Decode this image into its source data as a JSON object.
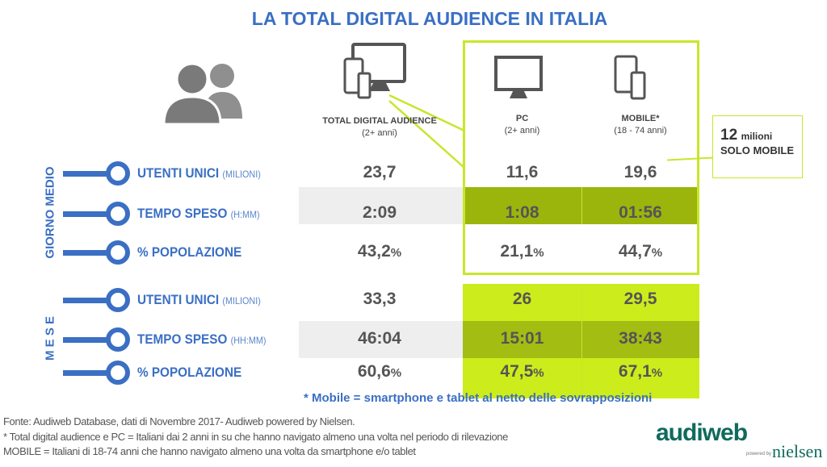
{
  "title": "LA TOTAL DIGITAL AUDIENCE IN ITALIA",
  "columns": [
    {
      "label": "TOTAL DIGITAL AUDIENCE",
      "sub": "(2+ anni)",
      "icon": "multi-device-icon"
    },
    {
      "label": "PC",
      "sub": "(2+ anni)",
      "icon": "monitor-icon"
    },
    {
      "label": "MOBILE*",
      "sub": "(18 - 74 anni)",
      "icon": "tablet-phone-icon"
    }
  ],
  "groups": [
    {
      "label": "GIORNO MEDIO",
      "rows": [
        {
          "label": "UTENTI UNICI",
          "unit": "(MILIONI)",
          "values": [
            "23,7",
            "11,6",
            "19,6"
          ],
          "suffix": ""
        },
        {
          "label": "TEMPO SPESO",
          "unit": "(H:MM)",
          "values": [
            "2:09",
            "1:08",
            "01:56"
          ],
          "suffix": ""
        },
        {
          "label": "% POPOLAZIONE",
          "unit": "",
          "values": [
            "43,2",
            "21,1",
            "44,7"
          ],
          "suffix": "%"
        }
      ]
    },
    {
      "label": "M E S E",
      "rows": [
        {
          "label": "UTENTI UNICI",
          "unit": "(MILIONI)",
          "values": [
            "33,3",
            "26",
            "29,5"
          ],
          "suffix": ""
        },
        {
          "label": "TEMPO SPESO",
          "unit": "(HH:MM)",
          "values": [
            "46:04",
            "15:01",
            "38:43"
          ],
          "suffix": ""
        },
        {
          "label": "% POPOLAZIONE",
          "unit": "",
          "values": [
            "60,6",
            "47,5",
            "67,1"
          ],
          "suffix": "%"
        }
      ]
    }
  ],
  "callout": {
    "number": "12",
    "unit": "milioni",
    "text": "SOLO MOBILE"
  },
  "note": "* Mobile = smartphone e tablet al netto delle sovrapposizioni",
  "footer": [
    "Fonte: Audiweb Database, dati di Novembre 2017- Audiweb powered by Nielsen.",
    "* Total digital audience e PC = Italiani dai 2 anni in su che hanno navigato almeno una volta nel periodo di rilevazione",
    "MOBILE = Italiani di 18-74 anni che hanno navigato almeno una volta da smartphone e/o tablet"
  ],
  "logo": {
    "text": "audiweb",
    "powered": "powered by",
    "brand": "nielsen"
  },
  "colors": {
    "blue": "#3a6fc4",
    "dark_green": "#9bb50d",
    "light_green": "#ccec1c",
    "outline_green": "#c8e62b",
    "gray_band": "#eeeeee"
  }
}
